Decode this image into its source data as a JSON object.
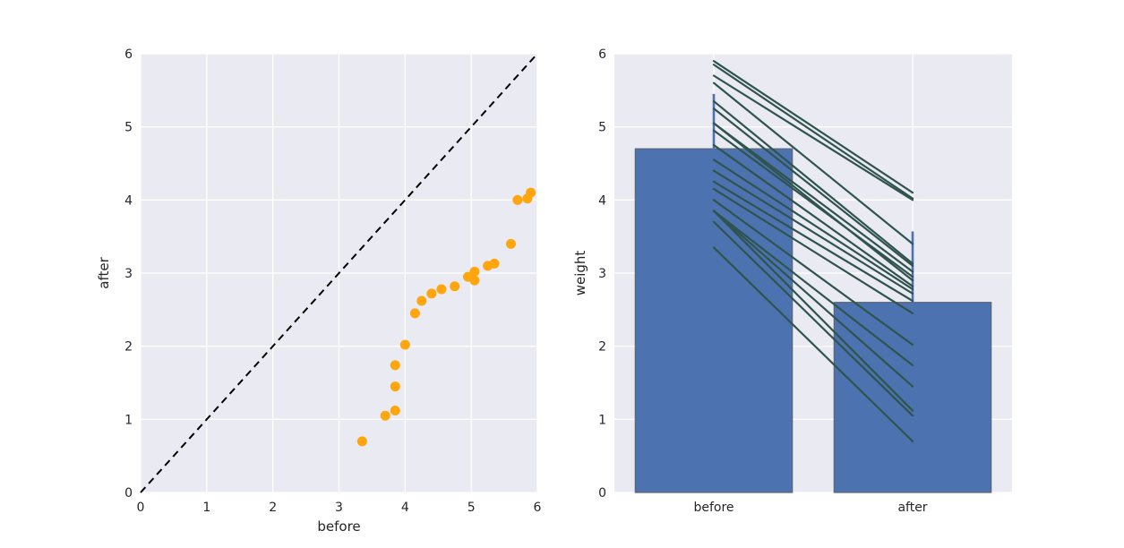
{
  "figure": {
    "background": "#ffffff",
    "panel_background": "#eaeaf2",
    "grid_color": "#ffffff",
    "text_color": "#262626"
  },
  "chart_data": [
    {
      "type": "scatter",
      "title": "",
      "xlabel": "before",
      "ylabel": "after",
      "xlim": [
        0,
        6
      ],
      "ylim": [
        0,
        6
      ],
      "xticks": [
        "0",
        "1",
        "2",
        "3",
        "4",
        "5",
        "6"
      ],
      "yticks": [
        "0",
        "1",
        "2",
        "3",
        "4",
        "5",
        "6"
      ],
      "grid": true,
      "legend": null,
      "point_color": "#ffa50e",
      "points": [
        [
          3.35,
          0.7
        ],
        [
          3.7,
          1.05
        ],
        [
          3.85,
          1.12
        ],
        [
          3.85,
          1.45
        ],
        [
          3.85,
          1.74
        ],
        [
          4.0,
          2.02
        ],
        [
          4.15,
          2.45
        ],
        [
          4.25,
          2.62
        ],
        [
          4.4,
          2.72
        ],
        [
          4.55,
          2.78
        ],
        [
          4.75,
          2.82
        ],
        [
          4.95,
          2.95
        ],
        [
          5.05,
          2.9
        ],
        [
          5.05,
          3.02
        ],
        [
          5.25,
          3.1
        ],
        [
          5.35,
          3.13
        ],
        [
          5.6,
          3.4
        ],
        [
          5.7,
          4.0
        ],
        [
          5.85,
          4.02
        ],
        [
          5.9,
          4.1
        ]
      ],
      "identity_line": {
        "x": [
          0,
          6
        ],
        "y": [
          0,
          6
        ],
        "color": "#000000",
        "style": "dashed"
      }
    },
    {
      "type": "bar",
      "title": "",
      "xlabel": "",
      "ylabel": "weight",
      "categories": [
        "before",
        "after"
      ],
      "values": [
        4.7,
        2.6
      ],
      "ylim": [
        0,
        6
      ],
      "yticks": [
        "0",
        "1",
        "2",
        "3",
        "4",
        "5",
        "6"
      ],
      "grid": true,
      "legend": null,
      "bar_color": "#4c72b0",
      "bar_edge_color": "#5f6672",
      "bar_width_frac": 0.79,
      "error_bar_color": "#4c72b0",
      "error_bars": [
        {
          "low": 3.9,
          "high": 5.45
        },
        {
          "low": 1.61,
          "high": 3.57
        }
      ],
      "paired_lines": {
        "color": "#2f544e",
        "pairs": [
          [
            3.35,
            0.7
          ],
          [
            3.7,
            1.05
          ],
          [
            3.85,
            1.12
          ],
          [
            3.85,
            1.45
          ],
          [
            3.85,
            1.74
          ],
          [
            4.0,
            2.02
          ],
          [
            4.15,
            2.45
          ],
          [
            4.25,
            2.62
          ],
          [
            4.4,
            2.72
          ],
          [
            4.55,
            2.78
          ],
          [
            4.75,
            2.82
          ],
          [
            4.95,
            2.95
          ],
          [
            5.05,
            2.9
          ],
          [
            5.05,
            3.02
          ],
          [
            5.25,
            3.1
          ],
          [
            5.35,
            3.13
          ],
          [
            5.6,
            3.4
          ],
          [
            5.7,
            4.0
          ],
          [
            5.85,
            4.02
          ],
          [
            5.9,
            4.1
          ]
        ]
      }
    }
  ]
}
